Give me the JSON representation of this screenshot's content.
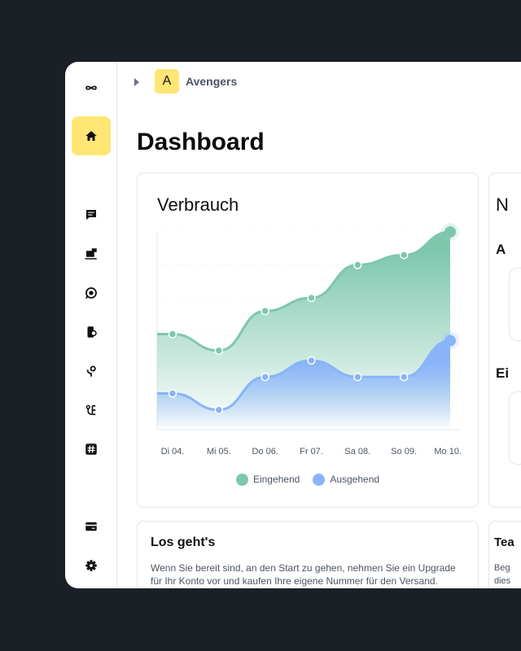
{
  "workspace": {
    "initial": "A",
    "name": "Avengers"
  },
  "page_title": "Dashboard",
  "usage_card": {
    "title": "Verbrauch"
  },
  "chart_data": {
    "type": "area",
    "title": "Verbrauch",
    "categories": [
      "Di 04.",
      "Mi 05.",
      "Do 06.",
      "Fr 07.",
      "Sa 08.",
      "So 09.",
      "Mo 10."
    ],
    "series": [
      {
        "name": "Eingehend",
        "color": "#7ec7ad",
        "values": [
          29,
          24,
          36,
          40,
          50,
          53,
          60
        ]
      },
      {
        "name": "Ausgehend",
        "color": "#89b4fa",
        "values": [
          11,
          6,
          16,
          21,
          16,
          16,
          27
        ]
      }
    ],
    "ylim": [
      0,
      60
    ],
    "grid": true,
    "legend": "bottom"
  },
  "right_card": {
    "title": "N",
    "section1": "A",
    "section2": "Ei"
  },
  "getting_started": {
    "title": "Los geht's",
    "body_line1": "Wenn Sie bereit sind, an den Start zu gehen, nehmen Sie ein Upgrade",
    "body_line2": "für Ihr Konto vor und kaufen Ihre eigene Nummer für den Versand."
  },
  "team_card": {
    "title": "Tea",
    "body_line1": "Beg",
    "body_line2": "dies"
  }
}
